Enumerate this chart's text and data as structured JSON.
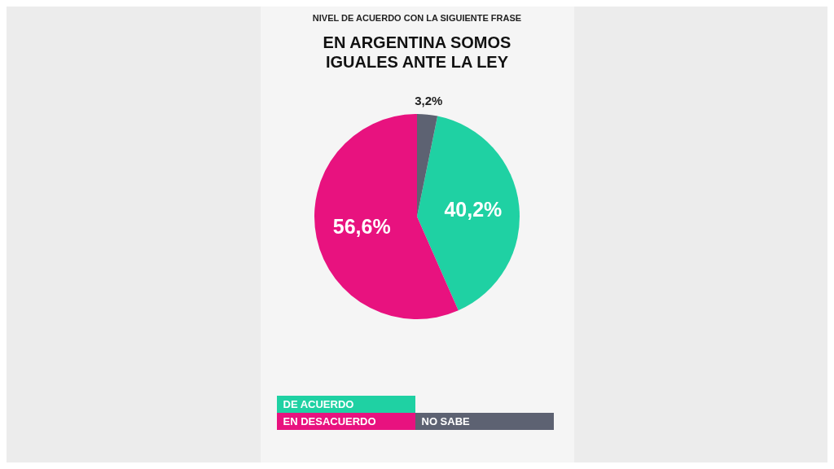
{
  "chart_data": {
    "type": "pie",
    "subtitle": "NIVEL DE ACUERDO CON LA SIGUIENTE FRASE",
    "title": "EN ARGENTINA SOMOS IGUALES ANTE LA LEY",
    "categories": [
      "DE ACUERDO",
      "EN DESACUERDO",
      "NO SABE"
    ],
    "values": [
      40.2,
      56.6,
      3.2
    ],
    "colors": [
      "#1fd1a3",
      "#e8127f",
      "#5d6272"
    ],
    "value_labels": [
      "40,2%",
      "56,6%",
      "3,2%"
    ],
    "legend": "bottom"
  }
}
